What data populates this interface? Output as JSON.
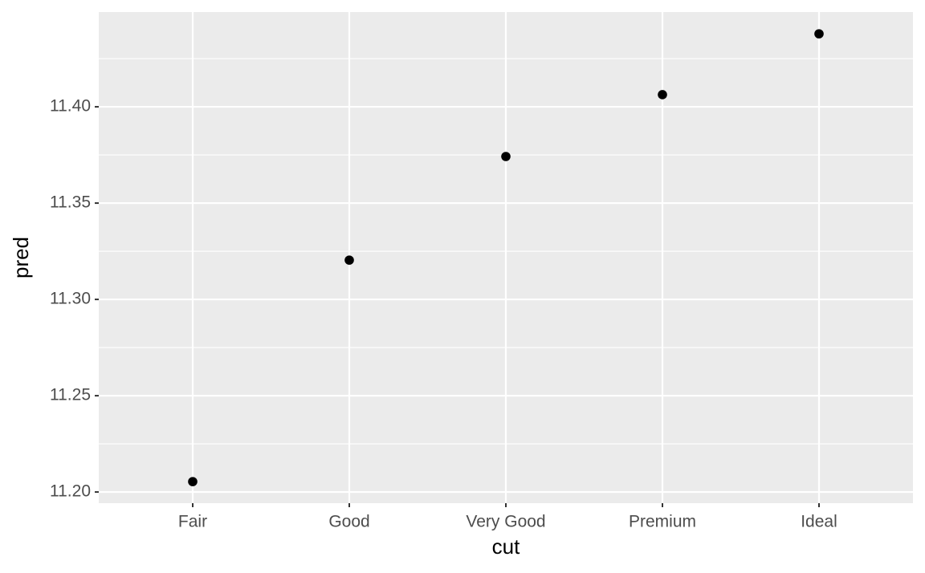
{
  "chart_data": {
    "type": "scatter",
    "x_label": "cut",
    "y_label": "pred",
    "categories": [
      "Fair",
      "Good",
      "Very Good",
      "Premium",
      "Ideal"
    ],
    "values": [
      11.2054,
      11.3204,
      11.3742,
      11.4063,
      11.4379
    ],
    "color": "#000000",
    "ylim": [
      11.1942,
      11.4492
    ],
    "yticks": [
      {
        "value": 11.2,
        "label": "11.20"
      },
      11.25,
      {
        "value": 11.3,
        "label": "11.30"
      },
      11.35,
      {
        "value": 11.4,
        "label": "11.40"
      }
    ],
    "grid": true
  }
}
